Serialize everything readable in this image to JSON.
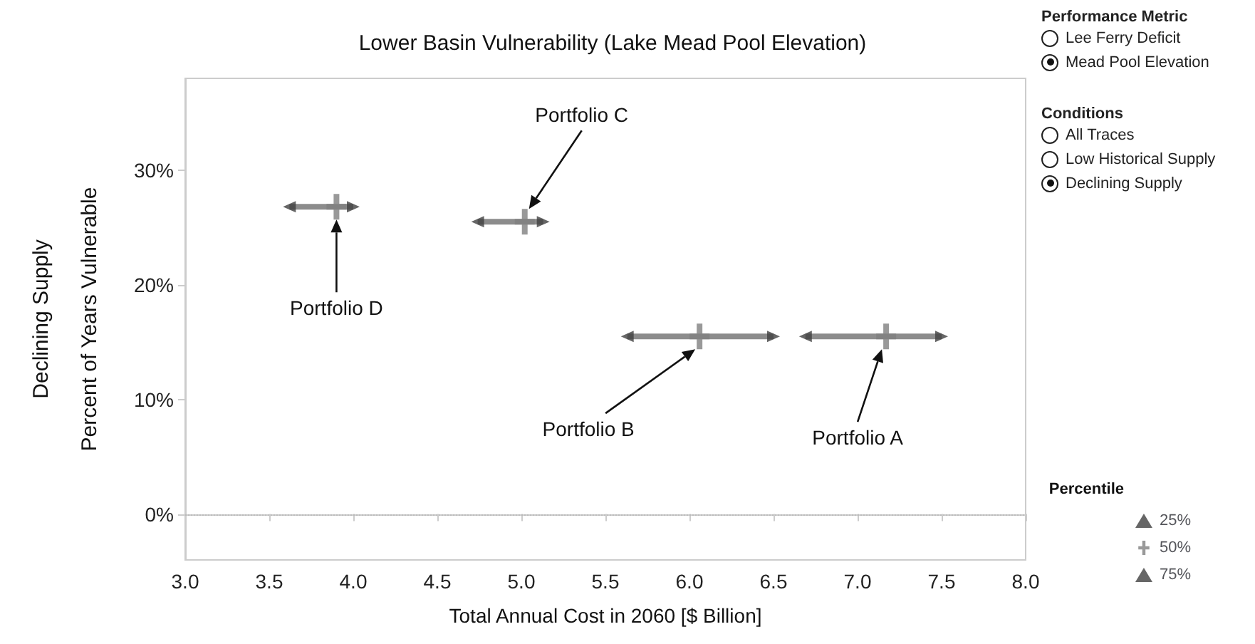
{
  "chart_data": {
    "type": "scatter",
    "title": "Lower Basin Vulnerability (Lake Mead Pool Elevation)",
    "xlabel": "Total Annual Cost in 2060 [$ Billion]",
    "ylabel": "Declining Supply\nPercent of Years Vulnerable",
    "legend_title": "Percentile",
    "legend": "right",
    "grid": false,
    "xlim": [
      3,
      8
    ],
    "xticks": [
      {
        "value": 3,
        "label": "3.0"
      },
      {
        "value": 3.5,
        "label": "3.5"
      },
      {
        "value": 4,
        "label": "4.0"
      },
      {
        "value": 4.5,
        "label": "4.5"
      },
      {
        "value": 5,
        "label": "5.0"
      },
      {
        "value": 5.5,
        "label": "5.5"
      },
      {
        "value": 6,
        "label": "6.0"
      },
      {
        "value": 6.5,
        "label": "6.5"
      },
      {
        "value": 7,
        "label": "7.0"
      },
      {
        "value": 7.5,
        "label": "7.5"
      },
      {
        "value": 8,
        "label": "8.0"
      }
    ],
    "ylim": [
      -4,
      38
    ],
    "yticks": [
      {
        "value": 0,
        "label": "0%"
      },
      {
        "value": 10,
        "label": "10%"
      },
      {
        "value": 20,
        "label": "20%"
      },
      {
        "value": 30,
        "label": "30%"
      }
    ],
    "ref_lines": [
      {
        "axis": "y",
        "value": 0,
        "color": "#bbbbbb",
        "line_style": "dotted"
      }
    ],
    "series": [
      {
        "name": "25%",
        "color": "#404040",
        "marker": "triangle",
        "x": [
          6.69,
          5.63,
          4.74,
          3.62
        ],
        "values": [
          15.5,
          15.5,
          25.5,
          26.8
        ]
      },
      {
        "name": "50%",
        "color": "#808080",
        "marker": "cross",
        "x": [
          7.17,
          6.06,
          5.02,
          3.9
        ],
        "values": [
          15.5,
          15.5,
          25.5,
          26.8
        ],
        "xerrors": [
          [
            6.69,
            7.5
          ],
          [
            5.63,
            6.5
          ],
          [
            4.74,
            5.13
          ],
          [
            3.62,
            4.0
          ]
        ]
      },
      {
        "name": "75%",
        "color": "#404040",
        "marker": "triangle",
        "x": [
          7.5,
          6.5,
          5.13,
          4.0
        ],
        "values": [
          15.5,
          15.5,
          25.5,
          26.8
        ]
      }
    ],
    "annotations": [
      "Portfolio A",
      "Portfolio B",
      "Portfolio C",
      "Portfolio D",
      "Performance Metric",
      "Lee Ferry Deficit",
      "Mead Pool Elevation",
      "Conditions",
      "All Traces",
      "Low Historical Supply",
      "Declining Supply"
    ]
  }
}
